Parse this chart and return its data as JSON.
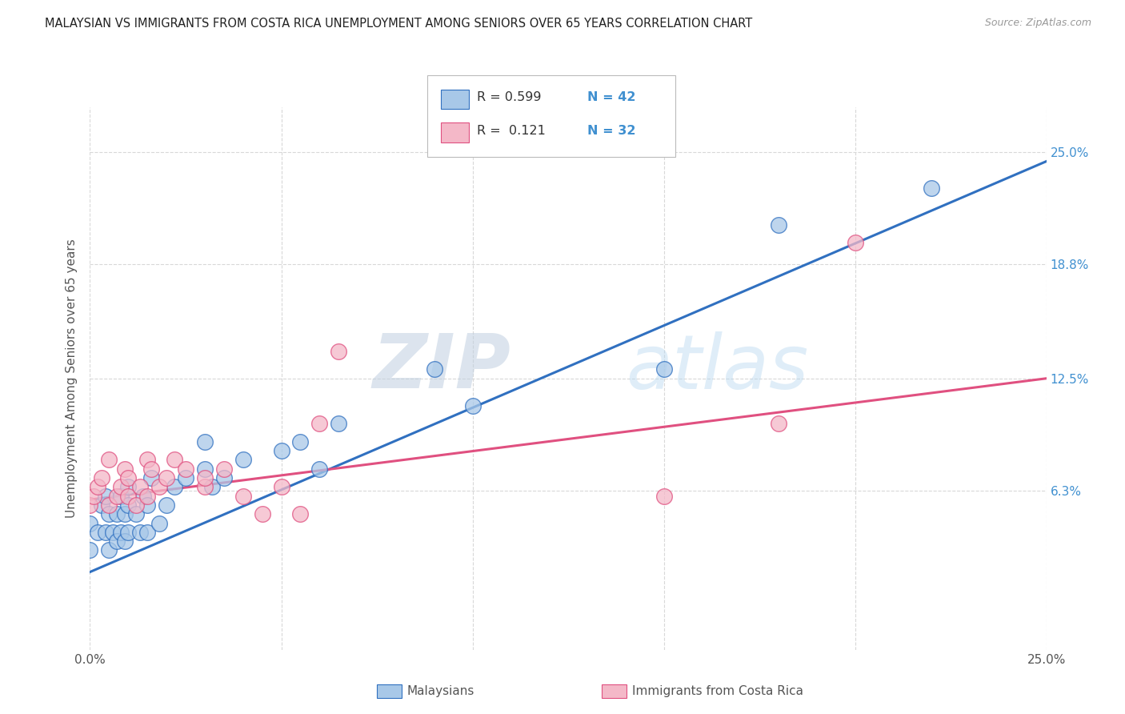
{
  "title": "MALAYSIAN VS IMMIGRANTS FROM COSTA RICA UNEMPLOYMENT AMONG SENIORS OVER 65 YEARS CORRELATION CHART",
  "source": "Source: ZipAtlas.com",
  "ylabel": "Unemployment Among Seniors over 65 years",
  "xlim": [
    0.0,
    0.25
  ],
  "ylim": [
    -0.025,
    0.275
  ],
  "legend_r1": "R = 0.599",
  "legend_n1": "N = 42",
  "legend_r2": "R =  0.121",
  "legend_n2": "N = 32",
  "blue_color": "#a8c8e8",
  "pink_color": "#f4b8c8",
  "line_blue": "#3070c0",
  "line_pink": "#e05080",
  "watermark_zip": "ZIP",
  "watermark_atlas": "atlas",
  "blue_scatter_x": [
    0.0,
    0.0,
    0.002,
    0.003,
    0.004,
    0.004,
    0.005,
    0.005,
    0.006,
    0.007,
    0.007,
    0.008,
    0.008,
    0.009,
    0.009,
    0.01,
    0.01,
    0.01,
    0.012,
    0.013,
    0.014,
    0.015,
    0.015,
    0.016,
    0.018,
    0.02,
    0.022,
    0.025,
    0.03,
    0.03,
    0.032,
    0.035,
    0.04,
    0.05,
    0.055,
    0.06,
    0.065,
    0.09,
    0.1,
    0.15,
    0.18,
    0.22
  ],
  "blue_scatter_y": [
    0.03,
    0.045,
    0.04,
    0.055,
    0.04,
    0.06,
    0.03,
    0.05,
    0.04,
    0.035,
    0.05,
    0.04,
    0.06,
    0.035,
    0.05,
    0.04,
    0.055,
    0.065,
    0.05,
    0.04,
    0.06,
    0.04,
    0.055,
    0.07,
    0.045,
    0.055,
    0.065,
    0.07,
    0.075,
    0.09,
    0.065,
    0.07,
    0.08,
    0.085,
    0.09,
    0.075,
    0.1,
    0.13,
    0.11,
    0.13,
    0.21,
    0.23
  ],
  "pink_scatter_x": [
    0.0,
    0.001,
    0.002,
    0.003,
    0.005,
    0.005,
    0.007,
    0.008,
    0.009,
    0.01,
    0.01,
    0.012,
    0.013,
    0.015,
    0.015,
    0.016,
    0.018,
    0.02,
    0.022,
    0.025,
    0.03,
    0.03,
    0.035,
    0.04,
    0.045,
    0.05,
    0.055,
    0.06,
    0.065,
    0.15,
    0.18,
    0.2
  ],
  "pink_scatter_y": [
    0.055,
    0.06,
    0.065,
    0.07,
    0.055,
    0.08,
    0.06,
    0.065,
    0.075,
    0.06,
    0.07,
    0.055,
    0.065,
    0.06,
    0.08,
    0.075,
    0.065,
    0.07,
    0.08,
    0.075,
    0.065,
    0.07,
    0.075,
    0.06,
    0.05,
    0.065,
    0.05,
    0.1,
    0.14,
    0.06,
    0.1,
    0.2
  ],
  "blue_line_x": [
    0.0,
    0.25
  ],
  "blue_line_y": [
    0.018,
    0.245
  ],
  "pink_line_x": [
    0.0,
    0.25
  ],
  "pink_line_y": [
    0.058,
    0.125
  ],
  "bg_color": "#ffffff",
  "grid_color": "#d8d8d8",
  "title_color": "#222222",
  "axis_label_color": "#555555",
  "right_label_color": "#4090d0",
  "legend_text_color": "#333333",
  "right_yticks": [
    0.063,
    0.125,
    0.188,
    0.25
  ],
  "right_yticklabels": [
    "6.3%",
    "12.5%",
    "18.8%",
    "25.0%"
  ]
}
